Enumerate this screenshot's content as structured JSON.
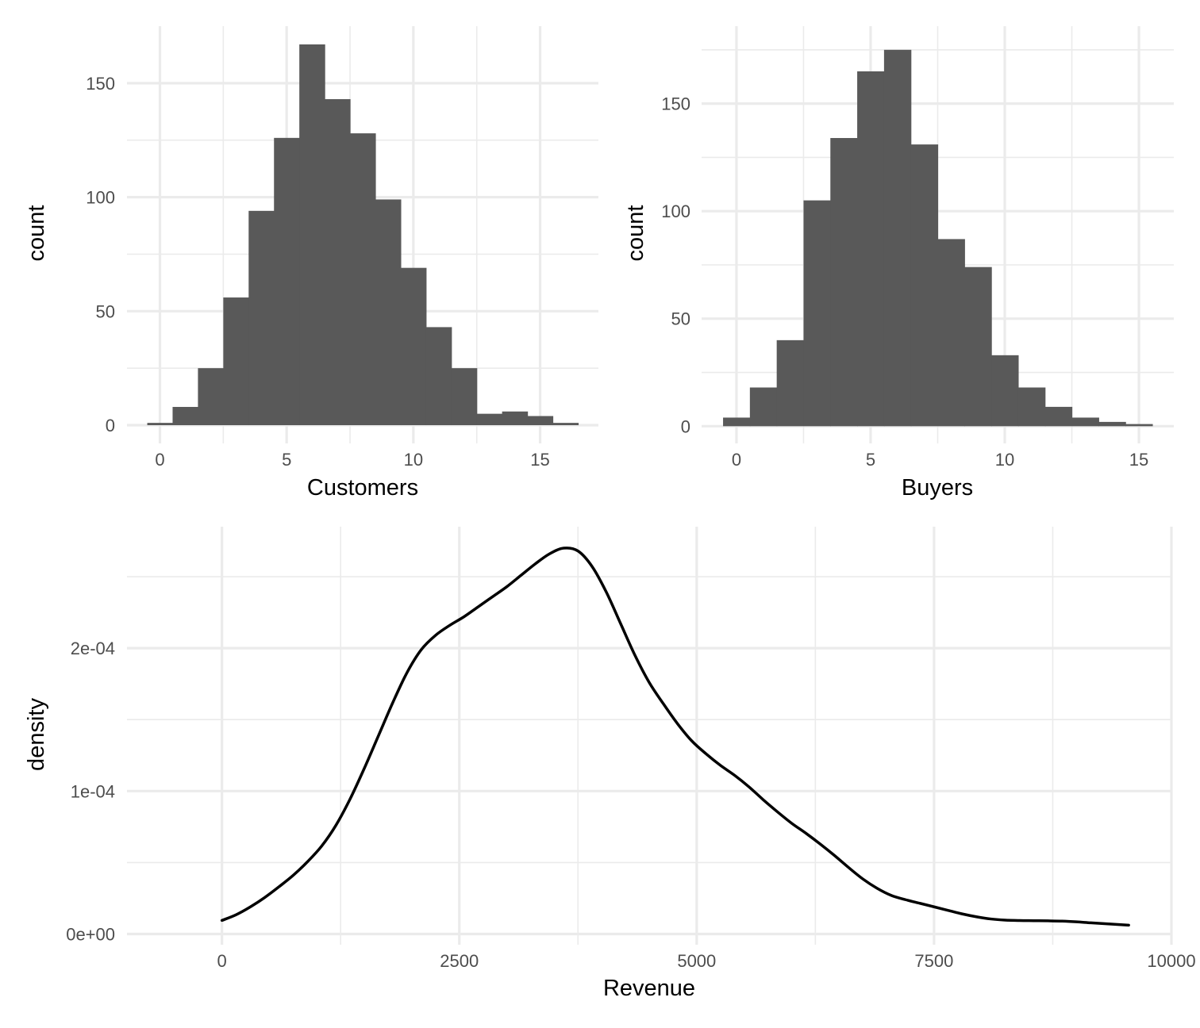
{
  "chart_data": [
    {
      "type": "bar",
      "subtype": "histogram",
      "xlabel": "Customers",
      "ylabel": "count",
      "x_ticks": [
        0,
        5,
        10,
        15
      ],
      "y_ticks": [
        0,
        50,
        100,
        150
      ],
      "xlim": [
        -1.3,
        17.3
      ],
      "ylim": [
        -8,
        175
      ],
      "bin_width": 1,
      "bin_centers": [
        0,
        1,
        2,
        3,
        4,
        5,
        6,
        7,
        8,
        9,
        10,
        11,
        12,
        13,
        14,
        15,
        16
      ],
      "values": [
        1,
        8,
        25,
        56,
        94,
        126,
        167,
        143,
        128,
        99,
        69,
        43,
        25,
        5,
        6,
        4,
        1
      ],
      "bar_color": "#595959",
      "grid": true
    },
    {
      "type": "bar",
      "subtype": "histogram",
      "xlabel": "Buyers",
      "ylabel": "count",
      "x_ticks": [
        0,
        5,
        10,
        15
      ],
      "y_ticks": [
        0,
        50,
        100,
        150
      ],
      "xlim": [
        -1.3,
        16.3
      ],
      "ylim": [
        -8,
        186
      ],
      "bin_width": 1,
      "bin_centers": [
        0,
        1,
        2,
        3,
        4,
        5,
        6,
        7,
        8,
        9,
        10,
        11,
        12,
        13,
        14,
        15
      ],
      "values": [
        4,
        18,
        40,
        105,
        134,
        165,
        175,
        131,
        87,
        74,
        33,
        18,
        9,
        4,
        2,
        1
      ],
      "bar_color": "#595959",
      "grid": true
    },
    {
      "type": "line",
      "subtype": "density",
      "xlabel": "Revenue",
      "ylabel": "density",
      "x_ticks": [
        0,
        2500,
        5000,
        7500,
        10000
      ],
      "y_ticks": [
        0,
        0.0001,
        0.0002
      ],
      "y_tick_labels": [
        "0e+00",
        "1e-04",
        "2e-04"
      ],
      "xlim": [
        -1000,
        10000
      ],
      "ylim": [
        -7.5e-06,
        0.000285
      ],
      "x": [
        0,
        150,
        300,
        450,
        600,
        750,
        900,
        1050,
        1200,
        1350,
        1500,
        1650,
        1800,
        1950,
        2100,
        2250,
        2400,
        2550,
        2700,
        2850,
        3000,
        3150,
        3300,
        3450,
        3600,
        3750,
        3900,
        4050,
        4200,
        4350,
        4500,
        4650,
        4800,
        4950,
        5100,
        5250,
        5400,
        5550,
        5700,
        5850,
        6000,
        6150,
        6300,
        6450,
        6600,
        6750,
        6900,
        7050,
        7200,
        7350,
        7500,
        7650,
        7800,
        7950,
        8100,
        8250,
        8400,
        8550,
        8700,
        8850,
        9000,
        9150,
        9300,
        9450,
        9550
      ],
      "y": [
        9.5e-06,
        1.35e-05,
        1.9e-05,
        2.55e-05,
        3.3e-05,
        4.1e-05,
        5.05e-05,
        6.15e-05,
        7.6e-05,
        9.45e-05,
        0.000116,
        0.000139,
        0.000162,
        0.000183,
        0.000199,
        0.000209,
        0.000216,
        0.000222,
        0.000229,
        0.000236,
        0.000243,
        0.000251,
        0.000259,
        0.000266,
        0.00027,
        0.000268,
        0.000257,
        0.000239,
        0.000217,
        0.000195,
        0.000176,
        0.000161,
        0.000147,
        0.000135,
        0.000126,
        0.000118,
        0.000111,
        0.000103,
        9.4e-05,
        8.55e-05,
        7.75e-05,
        7.05e-05,
        6.3e-05,
        5.5e-05,
        4.65e-05,
        3.85e-05,
        3.2e-05,
        2.7e-05,
        2.4e-05,
        2.15e-05,
        1.9e-05,
        1.65e-05,
        1.4e-05,
        1.2e-05,
        1.05e-05,
        9.7e-06,
        9.4e-06,
        9.3e-06,
        9.2e-06,
        9e-06,
        8.5e-06,
        7.8e-06,
        7.2e-06,
        6.6e-06,
        6.2e-06
      ],
      "line_color": "#000000",
      "grid": true
    }
  ]
}
